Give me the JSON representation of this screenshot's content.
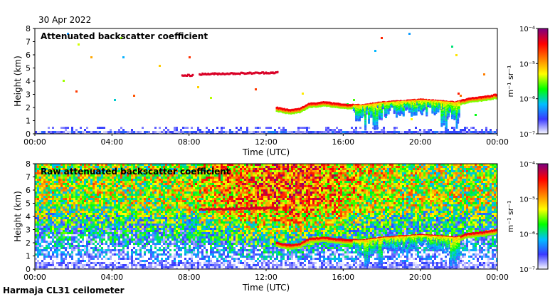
{
  "header": {
    "date": "30 Apr 2022"
  },
  "footer": {
    "site": "Harmaja CL31 ceilometer"
  },
  "chart_data": [
    {
      "type": "heatmap",
      "title": "Attenuated backscatter coefficient",
      "xlabel": "Time (UTC)",
      "ylabel": "Height (km)",
      "x_ticks": [
        "00:00",
        "04:00",
        "08:00",
        "12:00",
        "16:00",
        "20:00",
        "00:00"
      ],
      "y_ticks": [
        "0",
        "1",
        "2",
        "3",
        "4",
        "5",
        "6",
        "7",
        "8"
      ],
      "xlim_hours": [
        0,
        24
      ],
      "ylim_km": [
        0,
        8
      ],
      "colorbar": {
        "label": "m⁻¹ sr⁻¹",
        "ticks": [
          "10⁻⁴",
          "10⁻⁵",
          "10⁻⁶",
          "10⁻⁷"
        ],
        "log_range": [
          -7,
          -4
        ],
        "colors": [
          "#ffffff",
          "#3a3aff",
          "#00bfff",
          "#00ff00",
          "#ffff00",
          "#ff7f00",
          "#ff0000",
          "#7f007f"
        ]
      },
      "features": [
        {
          "kind": "cloud_layer",
          "from_hour": 7.6,
          "to_hour": 8.2,
          "height_km": 4.4,
          "level": -4.3
        },
        {
          "kind": "cloud_layer",
          "from_hour": 8.5,
          "to_hour": 12.6,
          "height_km": 4.5,
          "level": -4.3
        },
        {
          "kind": "cloud_base",
          "from_hour": 12.5,
          "to_hour": 24,
          "level": -4.5,
          "heights_km": [
            [
              12.5,
              2.0
            ],
            [
              13.2,
              1.8
            ],
            [
              13.7,
              1.9
            ],
            [
              14.2,
              2.3
            ],
            [
              15.0,
              2.4
            ],
            [
              15.6,
              2.3
            ],
            [
              16.2,
              2.2
            ],
            [
              17.0,
              2.2
            ],
            [
              18.0,
              2.4
            ],
            [
              19.0,
              2.5
            ],
            [
              20.0,
              2.6
            ],
            [
              21.0,
              2.5
            ],
            [
              21.8,
              2.4
            ],
            [
              22.5,
              2.7
            ],
            [
              23.2,
              2.8
            ],
            [
              24.0,
              3.0
            ]
          ]
        },
        {
          "kind": "precipitation",
          "from_hour": 16.5,
          "to_hour": 22.0,
          "level": -5.5
        }
      ]
    },
    {
      "type": "heatmap",
      "title": "Raw attenuated backscatter coefficient",
      "xlabel": "Time (UTC)",
      "ylabel": "Height (km)",
      "x_ticks": [
        "00:00",
        "04:00",
        "08:00",
        "12:00",
        "16:00",
        "20:00",
        "00:00"
      ],
      "y_ticks": [
        "0",
        "1",
        "2",
        "3",
        "4",
        "5",
        "6",
        "7",
        "8"
      ],
      "xlim_hours": [
        0,
        24
      ],
      "ylim_km": [
        0,
        8
      ],
      "colorbar": {
        "label": "m⁻¹ sr⁻¹",
        "ticks": [
          "10⁻⁴",
          "10⁻⁵",
          "10⁻⁶",
          "10⁻⁷"
        ],
        "log_range": [
          -7,
          -4
        ],
        "colors": [
          "#ffffff",
          "#3a3aff",
          "#00bfff",
          "#00ff00",
          "#ffff00",
          "#ff7f00",
          "#ff0000",
          "#7f007f"
        ]
      },
      "features": [
        {
          "kind": "noise_background",
          "level": -5.9
        },
        {
          "kind": "cloud_layer",
          "from_hour": 8.5,
          "to_hour": 12.6,
          "height_km": 4.5,
          "level": -4.3
        },
        {
          "kind": "cloud_base",
          "from_hour": 12.5,
          "to_hour": 24,
          "level": -4.5,
          "heights_km": [
            [
              12.5,
              2.0
            ],
            [
              13.2,
              1.8
            ],
            [
              13.7,
              1.9
            ],
            [
              14.2,
              2.3
            ],
            [
              15.0,
              2.4
            ],
            [
              15.6,
              2.3
            ],
            [
              16.2,
              2.2
            ],
            [
              17.0,
              2.2
            ],
            [
              18.0,
              2.4
            ],
            [
              19.0,
              2.5
            ],
            [
              20.0,
              2.6
            ],
            [
              21.0,
              2.5
            ],
            [
              21.8,
              2.4
            ],
            [
              22.5,
              2.7
            ],
            [
              23.2,
              2.8
            ],
            [
              24.0,
              3.0
            ]
          ]
        },
        {
          "kind": "precipitation",
          "from_hour": 16.5,
          "to_hour": 22.0,
          "level": -5.5
        }
      ]
    }
  ]
}
